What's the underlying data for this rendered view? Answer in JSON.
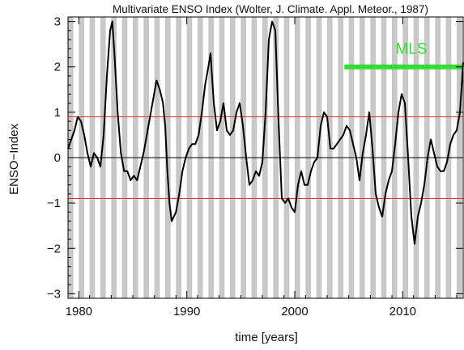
{
  "chart_data": {
    "type": "line",
    "title": "Multivariate ENSO Index (Wolter, J. Climate. Appl. Meteor., 1987)",
    "xlabel": "time [years]",
    "ylabel": "ENSO−Index",
    "xlim": [
      1979.0,
      2015.6
    ],
    "ylim": [
      -3.1,
      3.1
    ],
    "x_ticks": [
      1980,
      1990,
      2000,
      2010
    ],
    "x_tick_labels": [
      "1980",
      "1990",
      "2000",
      "2010"
    ],
    "y_ticks": [
      -3,
      -2,
      -1,
      0,
      1,
      2,
      3
    ],
    "y_tick_labels": [
      "−3",
      "−2",
      "−1",
      "0",
      "1",
      "2",
      "3"
    ],
    "grid": false,
    "background_bands": "alternating gray/white vertical stripes, half-year wide",
    "reference_lines": [
      {
        "y": 0,
        "color": "#000000"
      },
      {
        "y": 0.9,
        "color": "#dd3333"
      },
      {
        "y": -0.9,
        "color": "#dd3333"
      }
    ],
    "annotation": {
      "text": "MLS",
      "x_start": 2004.6,
      "x_end": 2015.6,
      "y": 2.0,
      "color": "#33dd33"
    },
    "series": [
      {
        "color": "#000000",
        "x": [
          1979.0,
          1979.3,
          1979.6,
          1979.9,
          1980.2,
          1980.5,
          1980.8,
          1981.1,
          1981.4,
          1981.7,
          1982.0,
          1982.3,
          1982.6,
          1982.9,
          1983.1,
          1983.3,
          1983.6,
          1983.9,
          1984.2,
          1984.5,
          1984.8,
          1985.1,
          1985.4,
          1985.7,
          1986.0,
          1986.3,
          1986.6,
          1986.9,
          1987.2,
          1987.5,
          1987.8,
          1988.0,
          1988.2,
          1988.4,
          1988.6,
          1988.8,
          1989.0,
          1989.3,
          1989.6,
          1989.9,
          1990.2,
          1990.5,
          1990.8,
          1991.1,
          1991.4,
          1991.7,
          1992.0,
          1992.2,
          1992.5,
          1992.8,
          1993.1,
          1993.4,
          1993.7,
          1994.0,
          1994.3,
          1994.6,
          1994.9,
          1995.2,
          1995.5,
          1995.8,
          1996.1,
          1996.4,
          1996.7,
          1997.0,
          1997.3,
          1997.6,
          1997.9,
          1998.2,
          1998.5,
          1998.8,
          1999.1,
          1999.4,
          1999.7,
          2000.0,
          2000.3,
          2000.6,
          2000.9,
          2001.2,
          2001.5,
          2001.8,
          2002.1,
          2002.4,
          2002.7,
          2003.0,
          2003.3,
          2003.6,
          2003.9,
          2004.2,
          2004.5,
          2004.8,
          2005.1,
          2005.4,
          2005.7,
          2006.0,
          2006.3,
          2006.6,
          2006.9,
          2007.2,
          2007.5,
          2007.8,
          2008.1,
          2008.4,
          2008.7,
          2009.0,
          2009.3,
          2009.6,
          2009.9,
          2010.2,
          2010.5,
          2010.8,
          2011.1,
          2011.4,
          2011.7,
          2012.0,
          2012.3,
          2012.6,
          2012.9,
          2013.2,
          2013.5,
          2013.8,
          2014.1,
          2014.4,
          2014.7,
          2015.0,
          2015.3,
          2015.6
        ],
        "values": [
          0.2,
          0.4,
          0.6,
          0.9,
          0.8,
          0.5,
          0.1,
          -0.2,
          0.1,
          0.0,
          -0.2,
          0.5,
          1.8,
          2.8,
          3.0,
          2.3,
          1.0,
          0.1,
          -0.3,
          -0.3,
          -0.5,
          -0.4,
          -0.5,
          -0.2,
          0.1,
          0.5,
          0.9,
          1.3,
          1.7,
          1.5,
          1.2,
          0.7,
          -0.3,
          -1.0,
          -1.4,
          -1.3,
          -1.2,
          -0.8,
          -0.3,
          0.0,
          0.2,
          0.3,
          0.3,
          0.5,
          1.0,
          1.6,
          2.0,
          2.3,
          1.2,
          0.6,
          0.8,
          1.2,
          0.6,
          0.5,
          0.6,
          1.0,
          1.2,
          0.7,
          0.0,
          -0.6,
          -0.5,
          -0.3,
          -0.4,
          -0.1,
          1.0,
          2.6,
          3.0,
          2.8,
          0.8,
          -0.9,
          -1.0,
          -0.9,
          -1.1,
          -1.2,
          -0.6,
          -0.3,
          -0.6,
          -0.6,
          -0.3,
          -0.1,
          0.0,
          0.7,
          1.0,
          0.9,
          0.2,
          0.2,
          0.3,
          0.4,
          0.5,
          0.7,
          0.6,
          0.3,
          0.0,
          -0.5,
          0.1,
          0.5,
          1.0,
          0.2,
          -0.8,
          -1.1,
          -1.3,
          -0.8,
          -0.5,
          -0.3,
          0.3,
          1.0,
          1.4,
          1.2,
          0.0,
          -1.3,
          -1.9,
          -1.3,
          -1.0,
          -0.6,
          0.0,
          0.4,
          0.1,
          -0.2,
          -0.3,
          -0.3,
          -0.1,
          0.3,
          0.5,
          0.6,
          1.0,
          2.1
        ]
      }
    ]
  }
}
